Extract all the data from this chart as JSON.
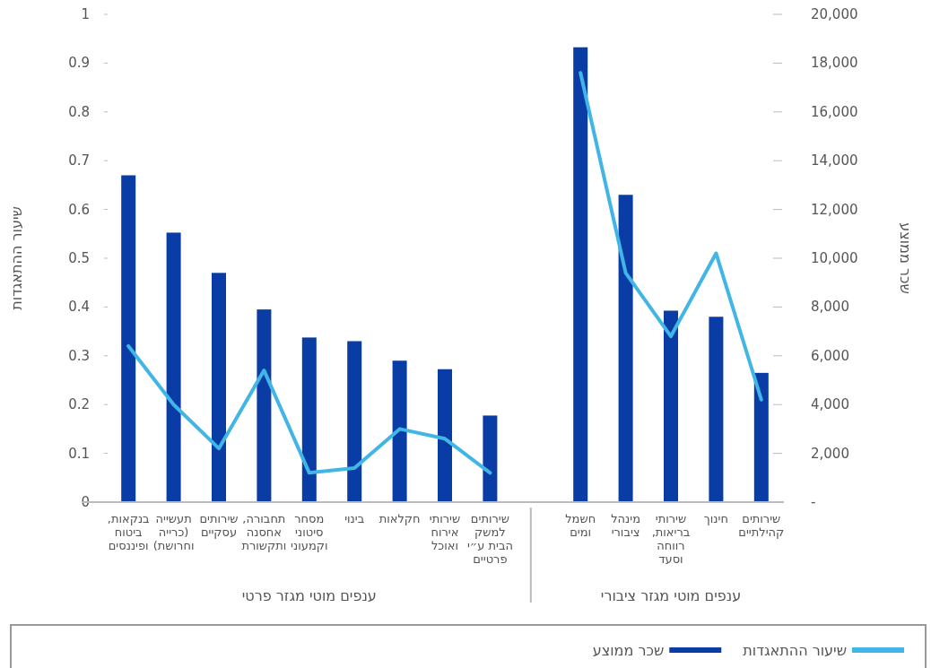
{
  "chart_data": {
    "type": "bar",
    "categories": [
      "בנקאות, ביטוח ופיננסים",
      "תעשייה (כרייה וחרושת)",
      "שירותים עסקיים",
      "תחבורה, אחסנה ותקשורת",
      "מסחר סיטוני וקמעוני",
      "בינוי",
      "חקלאות",
      "שירותי אירוח ואוכל",
      "שירותים למשק הבית ע״י פרטיים",
      null,
      "חשמל ומים",
      "מינהל ציבורי",
      "שירותי בריאות, רווחה וסעד",
      "חינוך",
      "שירותים קהילתיים"
    ],
    "series": [
      {
        "name": "שיעור ההתאגדות",
        "type": "line",
        "color": "#41b6e6",
        "values": [
          0.32,
          0.2,
          0.11,
          0.27,
          0.06,
          0.07,
          0.15,
          0.13,
          0.06,
          null,
          0.88,
          0.47,
          0.34,
          0.51,
          0.21
        ]
      },
      {
        "name": "שכר ממוצע",
        "axis": "y2",
        "color": "#0a3ca6",
        "values": [
          13400,
          11050,
          9400,
          7900,
          6750,
          6600,
          5800,
          5450,
          3550,
          null,
          18650,
          12600,
          7850,
          7600,
          5300
        ]
      }
    ],
    "ylabel": "שיעור ההתאגדות",
    "y2label": "שכר ממוצע",
    "ylim": [
      0,
      1
    ],
    "yticks": [
      0,
      0.1,
      0.2,
      0.3,
      0.4,
      0.5,
      0.6,
      0.7,
      0.8,
      0.9,
      1
    ],
    "y2lim": [
      0,
      20000
    ],
    "y2ticks": [
      {
        "value": 0,
        "label": "-"
      },
      {
        "value": 2000,
        "label": "2,000"
      },
      {
        "value": 4000,
        "label": "4,000"
      },
      {
        "value": 6000,
        "label": "6,000"
      },
      {
        "value": 8000,
        "label": "8,000"
      },
      {
        "value": 10000,
        "label": "10,000"
      },
      {
        "value": 12000,
        "label": "12,000"
      },
      {
        "value": 14000,
        "label": "14,000"
      },
      {
        "value": 16000,
        "label": "16,000"
      },
      {
        "value": 18000,
        "label": "18,000"
      },
      {
        "value": 20000,
        "label": "20,000"
      }
    ],
    "annotations": [
      "ענפים מוטי מגזר פרטי",
      "ענפים מוטי מגזר ציבורי"
    ],
    "grid": false,
    "legend": "bottom"
  }
}
